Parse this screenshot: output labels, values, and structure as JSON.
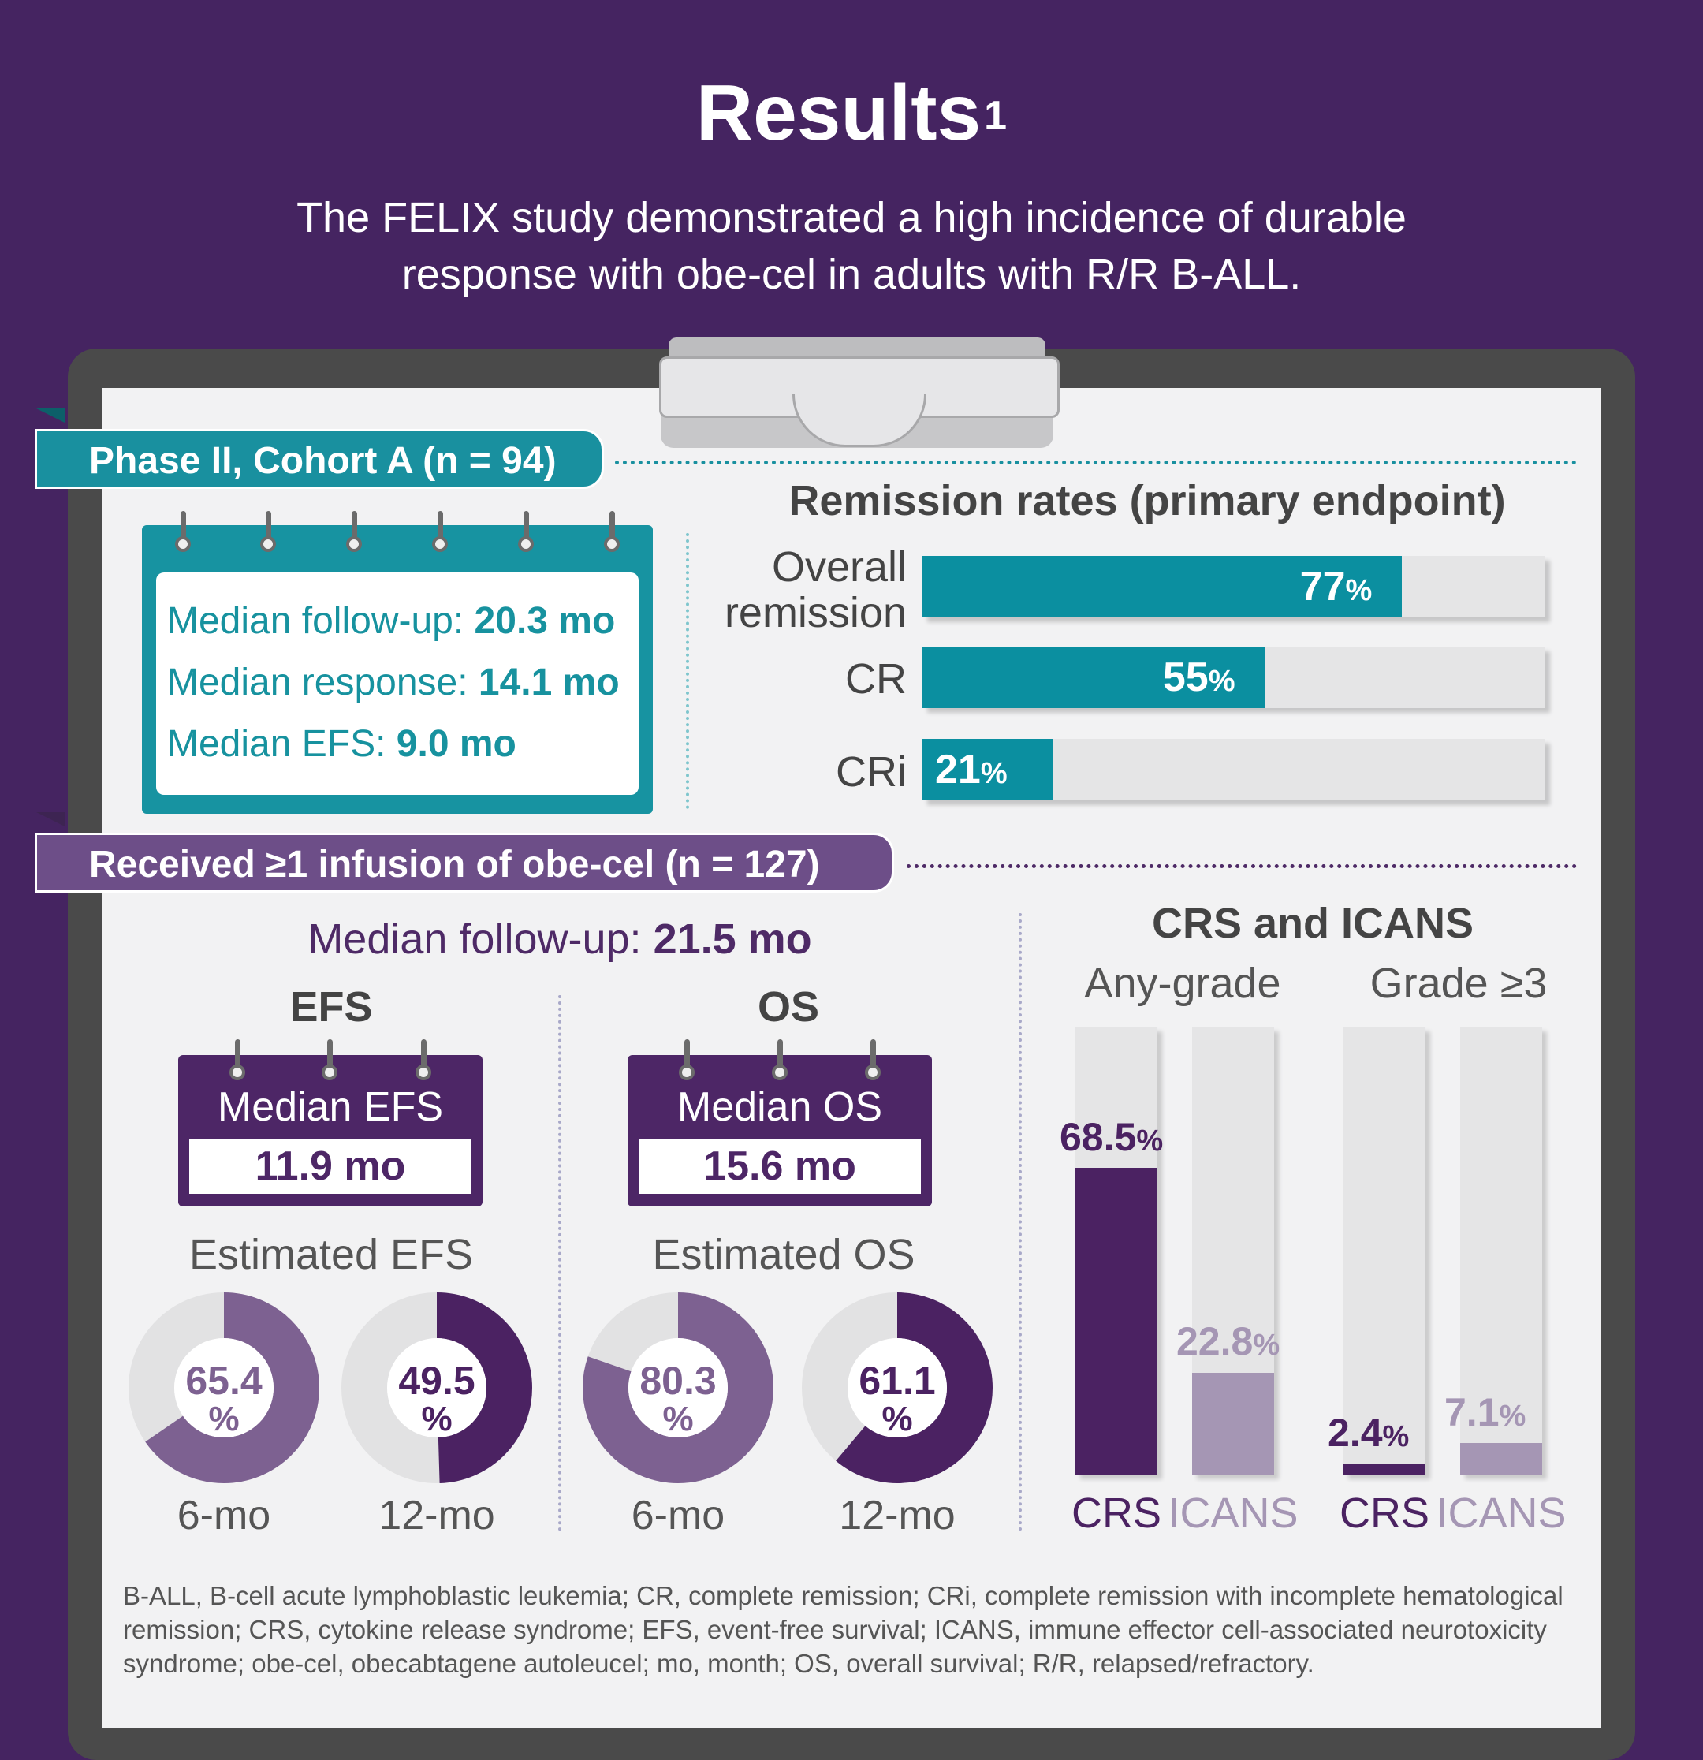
{
  "header": {
    "title": "Results",
    "title_sup": "1",
    "subtitle": "The FELIX study demonstrated a high incidence of durable response with obe-cel in adults with R/R B-ALL."
  },
  "cohort_a": {
    "banner": "Phase II, Cohort A (n = 94)",
    "followup_label": "Median follow-up:",
    "followup_value": "20.3 mo",
    "response_label": "Median response:",
    "response_value": "14.1 mo",
    "efs_label": "Median EFS:",
    "efs_value": "9.0 mo"
  },
  "remission": {
    "title": "Remission rates (primary endpoint)",
    "bars": [
      {
        "label_line1": "Overall",
        "label_line2": "remission",
        "value_text": "77",
        "unit": "%",
        "value": 77
      },
      {
        "label_line1": "CR",
        "label_line2": "",
        "value_text": "55",
        "unit": "%",
        "value": 55
      },
      {
        "label_line1": "CRi",
        "label_line2": "",
        "value_text": "21",
        "unit": "%",
        "value": 21
      }
    ]
  },
  "infused": {
    "banner": "Received ≥1 infusion of obe-cel (n = 127)",
    "followup_label": "Median follow-up:",
    "followup_value": "21.5 mo"
  },
  "efs": {
    "heading": "EFS",
    "median_label": "Median EFS",
    "median_value": "11.9 mo",
    "estimated_label": "Estimated EFS",
    "donuts": [
      {
        "value_text": "65.4",
        "unit": "%",
        "value": 65.4,
        "period": "6-mo",
        "color": "#7d6191"
      },
      {
        "value_text": "49.5",
        "unit": "%",
        "value": 49.5,
        "period": "12-mo",
        "color": "#4b2262"
      }
    ]
  },
  "os": {
    "heading": "OS",
    "median_label": "Median OS",
    "median_value": "15.6 mo",
    "estimated_label": "Estimated OS",
    "donuts": [
      {
        "value_text": "80.3",
        "unit": "%",
        "value": 80.3,
        "period": "6-mo",
        "color": "#7d6191"
      },
      {
        "value_text": "61.1",
        "unit": "%",
        "value": 61.1,
        "period": "12-mo",
        "color": "#4b2262"
      }
    ]
  },
  "crs_icans": {
    "title": "CRS and ICANS",
    "group1_label": "Any-grade",
    "group2_label": "Grade ≥3",
    "bars": [
      {
        "category": "CRS",
        "value_text": "68.5",
        "unit": "%",
        "value": 68.5,
        "color": "#4b2262"
      },
      {
        "category": "ICANS",
        "value_text": "22.8",
        "unit": "%",
        "value": 22.8,
        "color": "#a596b4"
      },
      {
        "category": "CRS",
        "value_text": "2.4",
        "unit": "%",
        "value": 2.4,
        "color": "#4b2262"
      },
      {
        "category": "ICANS",
        "value_text": "7.1",
        "unit": "%",
        "value": 7.1,
        "color": "#a596b4"
      }
    ]
  },
  "footnote": "B-ALL, B-cell acute lymphoblastic leukemia; CR, complete remission; CRi, complete remission with incomplete hematological remission; CRS, cytokine release syndrome; EFS, event-free survival; ICANS, immune effector cell-associated neurotoxicity syndrome; obe-cel, obecabtagene autoleucel; mo, month; OS, overall survival; R/R, relapsed/refractory.",
  "colors": {
    "background": "#452461",
    "teal": "#0b8fa0",
    "purple_dark": "#4b2262",
    "purple_mid": "#7d6191",
    "purple_light": "#a596b4",
    "bar_track": "#e5e5e6"
  }
}
